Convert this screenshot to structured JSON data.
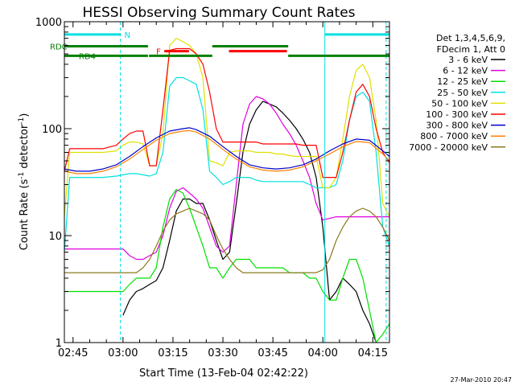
{
  "chart_data": {
    "type": "line",
    "title": "HESSI Observing Summary Count Rates",
    "xlabel": "Start Time (13-Feb-04 02:42:22)",
    "ylabel": "Count Rate (s⁻¹ detector⁻¹)",
    "ylabel_main": "Count Rate (s",
    "ylabel_sup1": "-1",
    "ylabel_mid": " detector",
    "ylabel_sup2": "-1",
    "ylabel_end": ")",
    "yscale": "log",
    "ylim": [
      1,
      1000
    ],
    "xlim": [
      162.4,
      260
    ],
    "x_units": "minutes after 00:00 UT",
    "x_ticks": [
      {
        "x": 165,
        "label": "02:45"
      },
      {
        "x": 180,
        "label": "03:00"
      },
      {
        "x": 195,
        "label": "03:15"
      },
      {
        "x": 210,
        "label": "03:30"
      },
      {
        "x": 225,
        "label": "03:45"
      },
      {
        "x": 240,
        "label": "04:00"
      },
      {
        "x": 255,
        "label": "04:15"
      }
    ],
    "y_ticks": [
      {
        "y": 1,
        "label": "1"
      },
      {
        "y": 10,
        "label": "10"
      },
      {
        "y": 100,
        "label": "100"
      },
      {
        "y": 1000,
        "label": "1000"
      }
    ],
    "legend_header": [
      "Det 1,3,4,5,6,9,",
      "FDecim 1, Att 0"
    ],
    "legend_position": "right",
    "series": [
      {
        "name": "3 - 6 keV",
        "color": "#000000",
        "x": [
          162.4,
          178,
          180,
          182,
          184,
          186,
          188,
          190,
          192,
          194,
          196,
          198,
          200,
          202,
          204,
          206,
          208,
          210,
          212,
          214,
          216,
          218,
          220,
          222,
          224,
          226,
          228,
          230,
          232,
          234,
          236,
          238,
          240,
          242,
          244,
          246,
          248,
          250,
          252,
          254,
          256,
          258,
          260
        ],
        "y": [
          null,
          null,
          1.8,
          2.5,
          3.0,
          3.2,
          3.5,
          3.8,
          5,
          9,
          17,
          22,
          22,
          20,
          20,
          14,
          9,
          6,
          7,
          20,
          60,
          110,
          150,
          180,
          170,
          160,
          140,
          120,
          100,
          80,
          60,
          35,
          12,
          2.5,
          3,
          4,
          3.5,
          3,
          2,
          1.5,
          1,
          null,
          null
        ]
      },
      {
        "name": "6 - 12 keV",
        "color": "#e000e0",
        "x": [
          162.4,
          166,
          170,
          174,
          178,
          180,
          182,
          184,
          186,
          188,
          190,
          192,
          194,
          196,
          198,
          200,
          202,
          204,
          206,
          208,
          210,
          212,
          214,
          216,
          218,
          220,
          222,
          224,
          226,
          228,
          230,
          232,
          234,
          236,
          238,
          240,
          244,
          248,
          252,
          256,
          260
        ],
        "y": [
          7.5,
          7.5,
          7.5,
          7.5,
          7.5,
          7.5,
          6.5,
          6,
          6,
          6.5,
          7,
          10,
          18,
          26,
          28,
          25,
          22,
          18,
          12,
          8,
          7,
          8,
          30,
          110,
          170,
          200,
          190,
          170,
          140,
          110,
          90,
          70,
          50,
          35,
          20,
          14,
          15,
          15,
          15,
          15,
          15
        ]
      },
      {
        "name": "12 - 25 keV",
        "color": "#00e000",
        "x": [
          162.4,
          166,
          170,
          174,
          178,
          180,
          182,
          184,
          186,
          188,
          190,
          192,
          194,
          196,
          198,
          200,
          202,
          204,
          206,
          208,
          210,
          212,
          214,
          216,
          218,
          220,
          222,
          224,
          226,
          228,
          230,
          232,
          234,
          236,
          238,
          240,
          242,
          244,
          246,
          248,
          250,
          252,
          254,
          256,
          258,
          260
        ],
        "y": [
          3,
          3,
          3,
          3,
          3,
          3,
          3.5,
          4,
          4,
          4,
          5,
          12,
          22,
          27,
          25,
          18,
          12,
          8,
          5,
          5,
          4,
          5,
          6,
          6,
          6,
          5,
          5,
          5,
          5,
          5,
          4.5,
          4.5,
          4.5,
          4,
          4,
          3,
          2.5,
          2.5,
          4,
          6,
          6,
          4,
          2,
          1,
          1.2,
          1.5
        ]
      },
      {
        "name": "25 - 50 keV",
        "color": "#00e0e0",
        "x": [
          162.4,
          164,
          166,
          170,
          174,
          178,
          180,
          182,
          184,
          186,
          188,
          190,
          192,
          194,
          196,
          198,
          200,
          202,
          204,
          206,
          208,
          210,
          212,
          214,
          216,
          218,
          220,
          222,
          224,
          226,
          228,
          230,
          232,
          234,
          236,
          238,
          240,
          242,
          244,
          246,
          248,
          250,
          252,
          254,
          256,
          258,
          260
        ],
        "y": [
          7,
          35,
          35,
          35,
          35,
          36,
          37,
          38,
          38,
          37,
          36,
          38,
          60,
          250,
          300,
          300,
          280,
          260,
          150,
          40,
          35,
          30,
          32,
          35,
          35,
          35,
          33,
          32,
          32,
          32,
          32,
          32,
          32,
          32,
          30,
          28,
          28,
          28,
          30,
          50,
          120,
          200,
          220,
          180,
          60,
          12,
          8
        ]
      },
      {
        "name": "50 - 100 keV",
        "color": "#e0e000",
        "x": [
          162.4,
          164,
          166,
          170,
          174,
          178,
          180,
          182,
          184,
          186,
          188,
          190,
          192,
          194,
          196,
          198,
          200,
          202,
          204,
          206,
          208,
          210,
          212,
          214,
          216,
          218,
          220,
          222,
          224,
          226,
          228,
          230,
          232,
          234,
          236,
          238,
          240,
          242,
          244,
          246,
          248,
          250,
          252,
          254,
          256,
          258,
          260
        ],
        "y": [
          15,
          60,
          60,
          60,
          60,
          62,
          70,
          75,
          75,
          72,
          45,
          45,
          90,
          600,
          700,
          650,
          600,
          500,
          300,
          50,
          48,
          45,
          60,
          62,
          62,
          62,
          60,
          60,
          60,
          58,
          58,
          56,
          55,
          55,
          55,
          55,
          28,
          28,
          35,
          80,
          200,
          350,
          400,
          300,
          120,
          20,
          15
        ]
      },
      {
        "name": "100 - 300 keV",
        "color": "#ff0000",
        "x": [
          162.4,
          164,
          166,
          170,
          174,
          178,
          180,
          182,
          184,
          186,
          188,
          190,
          192,
          194,
          196,
          198,
          200,
          202,
          204,
          206,
          208,
          210,
          212,
          214,
          216,
          218,
          220,
          222,
          224,
          226,
          228,
          230,
          232,
          234,
          236,
          238,
          240,
          242,
          244,
          246,
          248,
          250,
          252,
          254,
          256,
          258,
          260
        ],
        "y": [
          40,
          65,
          65,
          65,
          65,
          70,
          80,
          90,
          95,
          95,
          45,
          45,
          150,
          540,
          560,
          560,
          560,
          500,
          400,
          220,
          100,
          75,
          75,
          75,
          75,
          75,
          75,
          72,
          72,
          72,
          72,
          72,
          72,
          70,
          70,
          70,
          35,
          35,
          35,
          60,
          120,
          220,
          260,
          200,
          100,
          60,
          48
        ]
      },
      {
        "name": "300 - 800 keV",
        "color": "#0000c8",
        "x": [
          162.4,
          166,
          170,
          174,
          178,
          182,
          186,
          190,
          194,
          198,
          200,
          202,
          206,
          210,
          214,
          218,
          222,
          226,
          230,
          234,
          238,
          242,
          246,
          250,
          254,
          258,
          260
        ],
        "y": [
          42,
          40,
          40,
          42,
          46,
          55,
          68,
          82,
          95,
          100,
          102,
          98,
          85,
          68,
          55,
          46,
          43,
          42,
          43,
          46,
          52,
          62,
          72,
          80,
          78,
          62,
          55
        ]
      },
      {
        "name": "800 - 7000 keV",
        "color": "#ff8000",
        "x": [
          162.4,
          166,
          170,
          174,
          178,
          182,
          186,
          190,
          194,
          198,
          200,
          202,
          206,
          210,
          214,
          218,
          222,
          226,
          230,
          234,
          238,
          242,
          246,
          250,
          254,
          258,
          260
        ],
        "y": [
          40,
          38,
          38,
          40,
          44,
          52,
          64,
          78,
          90,
          95,
          96,
          93,
          80,
          64,
          52,
          44,
          41,
          40,
          41,
          44,
          50,
          58,
          68,
          76,
          74,
          58,
          50
        ]
      },
      {
        "name": "7000 - 20000 keV",
        "color": "#8c781e",
        "x": [
          162.4,
          166,
          170,
          174,
          178,
          180,
          182,
          184,
          186,
          188,
          190,
          192,
          194,
          196,
          198,
          200,
          202,
          204,
          206,
          208,
          210,
          212,
          214,
          216,
          218,
          220,
          222,
          224,
          226,
          228,
          230,
          232,
          234,
          236,
          238,
          240,
          242,
          244,
          246,
          248,
          250,
          252,
          254,
          256,
          258,
          260
        ],
        "y": [
          4.5,
          4.5,
          4.5,
          4.5,
          4.5,
          4.5,
          4.5,
          4.5,
          5,
          6,
          8,
          11,
          14,
          16,
          17,
          18,
          17,
          16,
          14,
          10,
          7.5,
          6,
          5,
          4.5,
          4.5,
          4.5,
          4.5,
          4.5,
          4.5,
          4.5,
          4.5,
          4.5,
          4.5,
          4.5,
          4.5,
          4.8,
          6,
          9,
          12,
          15,
          17,
          18,
          17,
          15,
          12,
          9
        ]
      }
    ],
    "flag_bars": [
      {
        "label": "N",
        "color": "#00e0e0",
        "y": 760,
        "segments": [
          [
            162.4,
            179.2
          ],
          [
            240.6,
            260
          ]
        ]
      },
      {
        "label": "F",
        "color": "#ff0000",
        "y": 530,
        "segments": [
          [
            192.4,
            199.8
          ],
          [
            211.8,
            229.2
          ]
        ]
      },
      {
        "label": "RDC",
        "color": "#008000",
        "y": 590,
        "segments": [
          [
            162.4,
            187.5
          ],
          [
            206.8,
            229.6
          ]
        ]
      },
      {
        "label": "RD4",
        "color": "#008000",
        "y": 480,
        "segments": [
          [
            162.4,
            187.5
          ],
          [
            187.8,
            206.8
          ],
          [
            229.6,
            260
          ]
        ]
      }
    ],
    "vertical_markers": [
      {
        "x": 162.4,
        "color": "#00e0e0",
        "style": "solid"
      },
      {
        "x": 179.2,
        "color": "#00e0e0",
        "style": "dashed"
      },
      {
        "x": 240.6,
        "color": "#00e0e0",
        "style": "solid"
      },
      {
        "x": 259.0,
        "color": "#00e0e0",
        "style": "dashed"
      }
    ],
    "timestamp": "27-Mar-2010 20:47"
  }
}
